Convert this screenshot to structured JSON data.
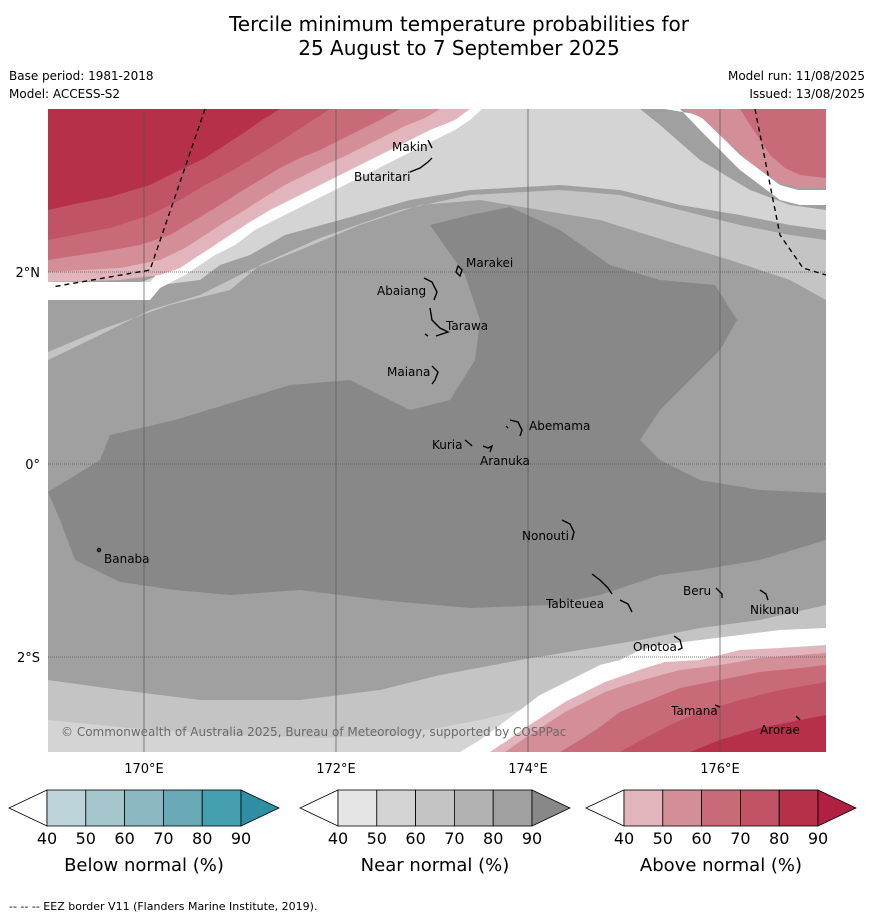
{
  "title_line1": "Tercile minimum temperature probabilities for",
  "title_line2": "25 August to 7 September 2025",
  "base_period": "Base period: 1981-2018",
  "model": "Model: ACCESS-S2",
  "model_run": "Model run: 11/08/2025",
  "issued": "Issued: 13/08/2025",
  "copyright": "© Commonwealth of Australia 2025, Bureau of Meteorology, supported by COSPPac",
  "lat_labels": [
    "2°N",
    "0°",
    "2°S"
  ],
  "lon_labels": [
    "170°E",
    "172°E",
    "174°E",
    "176°E"
  ],
  "places": {
    "makin": "Makin",
    "butaritari": "Butaritari",
    "marakei": "Marakei",
    "abaiang": "Abaiang",
    "tarawa": "Tarawa",
    "maiana": "Maiana",
    "abemama": "Abemama",
    "kuria": "Kuria",
    "aranuka": "Aranuka",
    "banaba": "Banaba",
    "nonouti": "Nonouti",
    "beru": "Beru",
    "nikunau": "Nikunau",
    "tabiteuea": "Tabiteuea",
    "onotoa": "Onotoa",
    "tamana": "Tamana",
    "arorae": "Arorae"
  },
  "colorbars": {
    "ticks": [
      "40",
      "50",
      "60",
      "70",
      "80",
      "90"
    ],
    "below": {
      "title": "Below normal (%)",
      "colors": [
        "#ffffff",
        "#bdd3da",
        "#a6c6ce",
        "#8bb8c3",
        "#6aa9b6",
        "#44a0b0",
        "#2f8ea1"
      ]
    },
    "near": {
      "title": "Near normal (%)",
      "colors": [
        "#ffffff",
        "#e5e5e5",
        "#d4d4d4",
        "#c4c4c4",
        "#b2b2b2",
        "#a0a0a0",
        "#888888"
      ]
    },
    "above": {
      "title": "Above normal (%)",
      "colors": [
        "#ffffff",
        "#e2b5bd",
        "#d48e98",
        "#c96a79",
        "#c15366",
        "#b6304a",
        "#b02040"
      ]
    }
  },
  "footer": "--  --  -- EEZ border V11 (Flanders Marine Institute, 2019)."
}
